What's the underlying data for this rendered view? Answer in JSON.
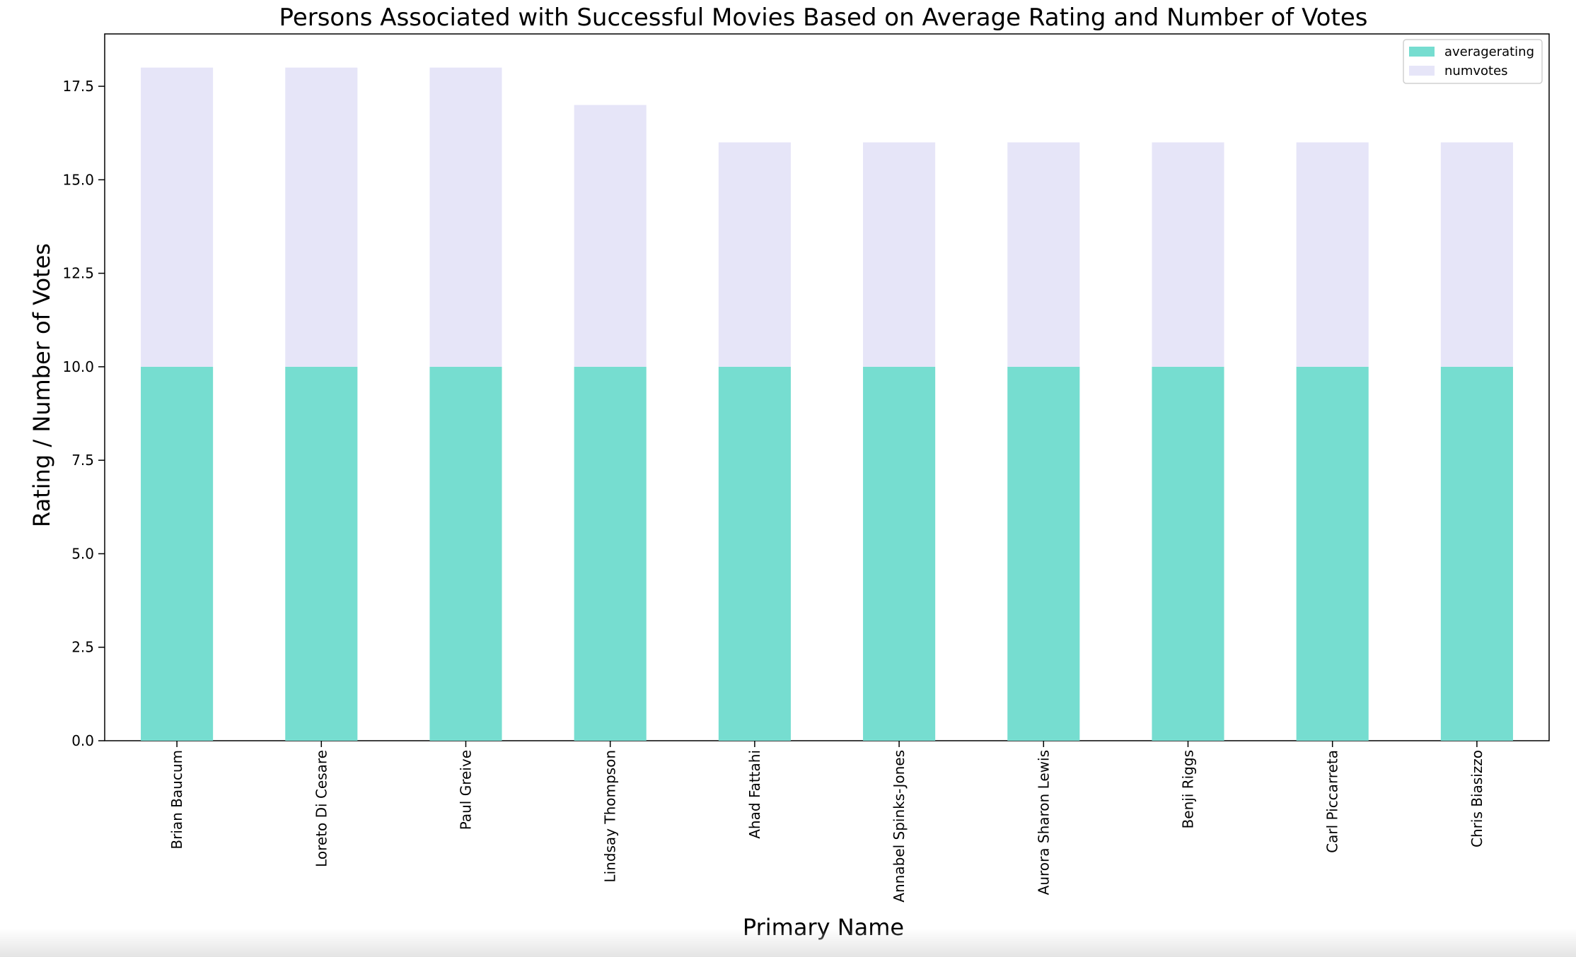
{
  "chart_data": {
    "type": "bar",
    "stacked": true,
    "title": "Persons Associated with Successful Movies Based on Average Rating and Number of Votes",
    "xlabel": "Primary Name",
    "ylabel": "Rating / Number of Votes",
    "categories": [
      "Brian Baucum",
      "Loreto Di Cesare",
      "Paul Greive",
      "Lindsay Thompson",
      "Ahad Fattahi",
      "Annabel Spinks-Jones",
      "Aurora Sharon Lewis",
      "Benji Riggs",
      "Carl Piccarreta",
      "Chris Biasizzo"
    ],
    "series": [
      {
        "name": "averagerating",
        "color": "#76ddd0",
        "values": [
          10,
          10,
          10,
          10,
          10,
          10,
          10,
          10,
          10,
          10
        ]
      },
      {
        "name": "numvotes",
        "color": "#e6e5f8",
        "values": [
          8,
          8,
          8,
          7,
          6,
          6,
          6,
          6,
          6,
          6
        ]
      }
    ],
    "ylim": [
      0,
      18.9
    ],
    "yticks": [
      "0.0",
      "2.5",
      "5.0",
      "7.5",
      "10.0",
      "12.5",
      "15.0",
      "17.5"
    ],
    "legend_position": "top-right",
    "grid": false
  }
}
